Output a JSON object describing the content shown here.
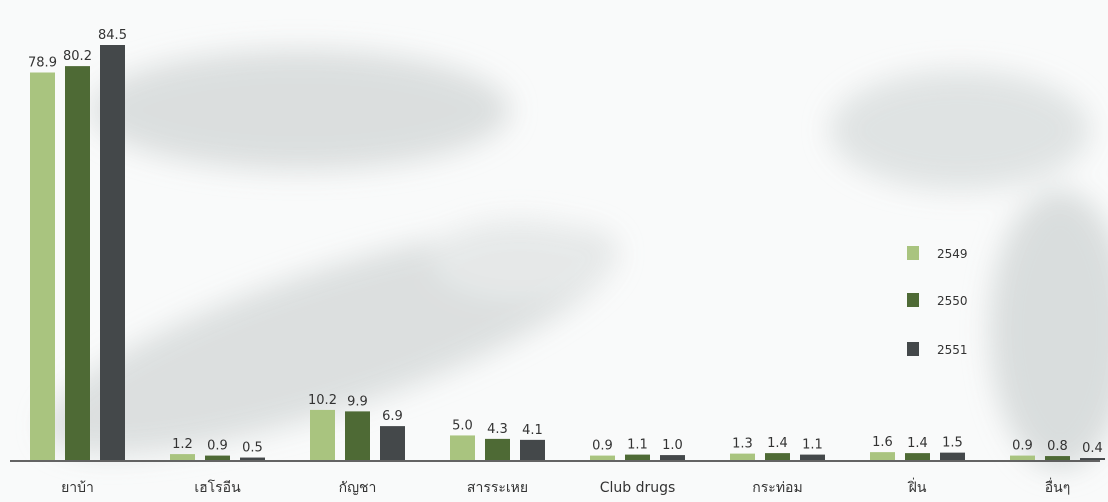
{
  "chart_data": {
    "type": "bar",
    "categories": [
      "ยาบ้า",
      "เฮโรอีน",
      "กัญชา",
      "สารระเหย",
      "Club drugs",
      "กระท่อม",
      "ฝิ่น",
      "อื่นๆ"
    ],
    "series": [
      {
        "name": "2549",
        "color": "#a9c47f",
        "values": [
          78.9,
          1.2,
          10.2,
          5.0,
          0.9,
          1.3,
          1.6,
          0.9
        ]
      },
      {
        "name": "2550",
        "color": "#4e6a35",
        "values": [
          80.2,
          0.9,
          9.9,
          4.3,
          1.1,
          1.4,
          1.4,
          0.8
        ]
      },
      {
        "name": "2551",
        "color": "#44484a",
        "values": [
          84.5,
          0.5,
          6.9,
          4.1,
          1.0,
          1.1,
          1.5,
          0.4
        ]
      }
    ],
    "value_labels": [
      [
        "78.9",
        "1.2",
        "10.2",
        "5.0",
        "0.9",
        "1.3",
        "1.6",
        "0.9"
      ],
      [
        "80.2",
        "0.9",
        "9.9",
        "4.3",
        "1.1",
        "1.4",
        "1.4",
        "0.8"
      ],
      [
        "84.5",
        "0.5",
        "6.9",
        "4.1",
        "1.0",
        "1.1",
        "1.5",
        "0.4"
      ]
    ],
    "ylim": [
      0,
      84.5
    ],
    "grid": false,
    "legend_position": "right"
  }
}
